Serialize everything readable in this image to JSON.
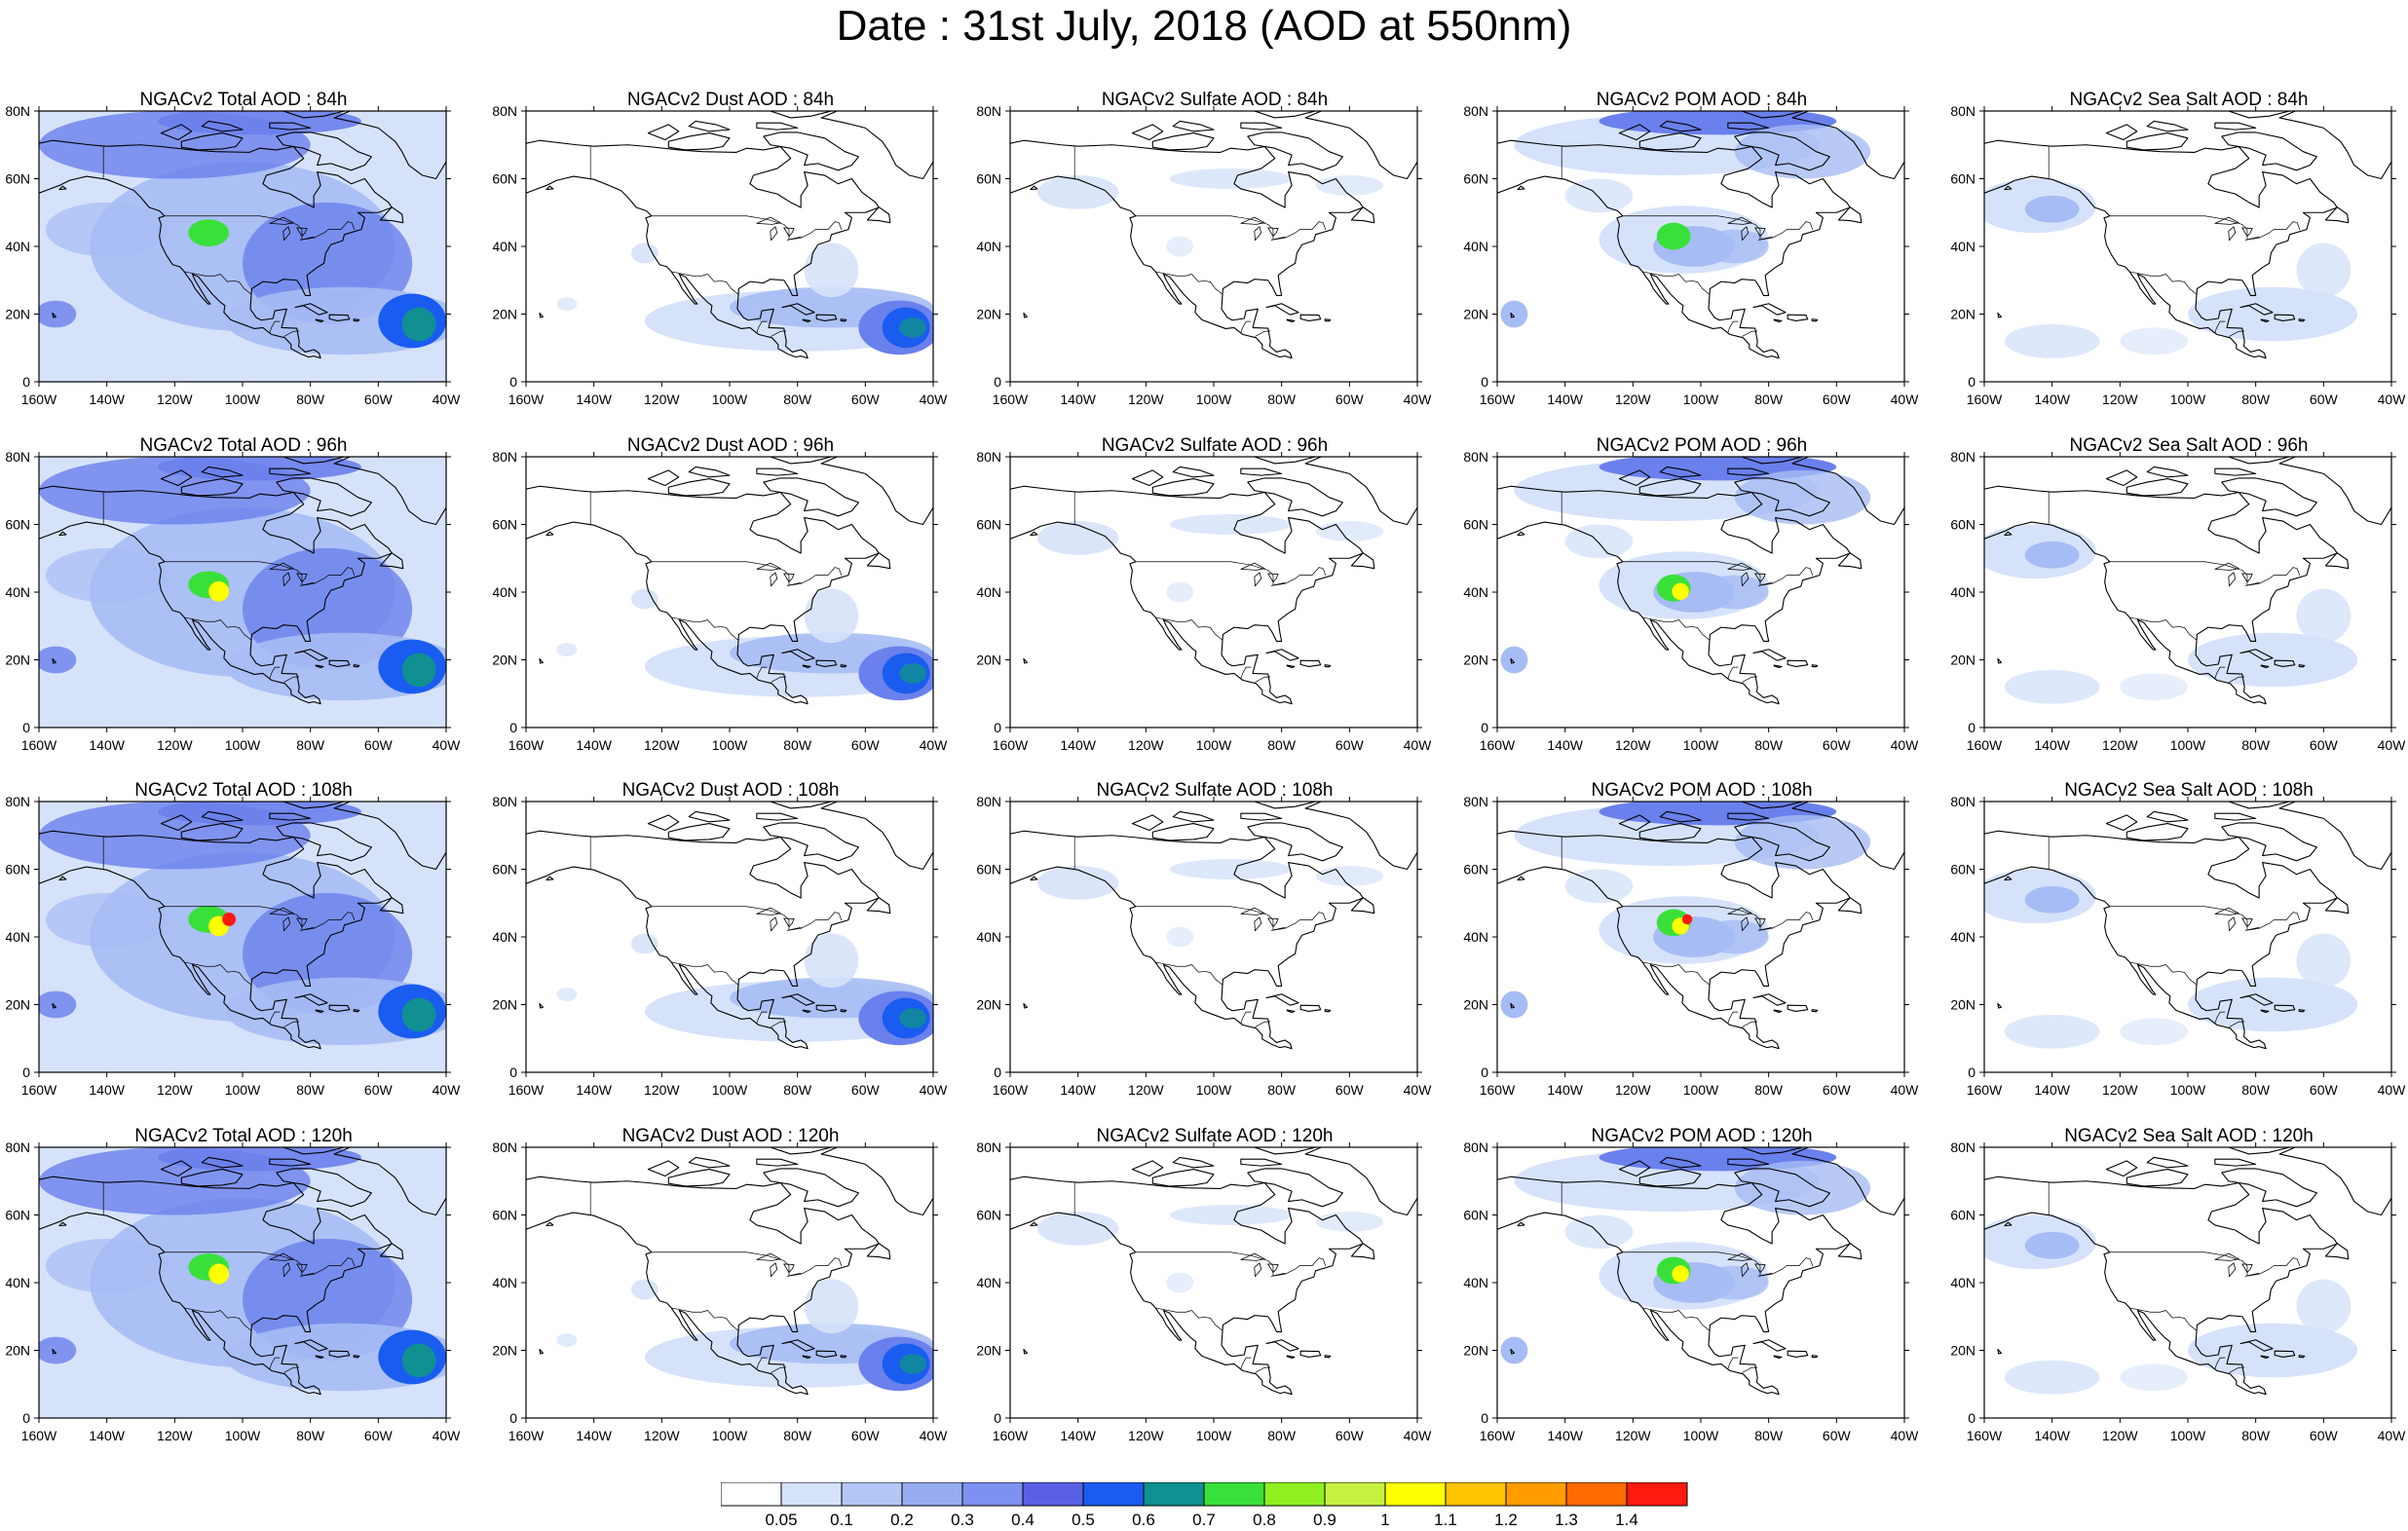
{
  "title": "Date : 31st July, 2018 (AOD at 550nm)",
  "axes": {
    "lon_labels": [
      "160W",
      "140W",
      "120W",
      "100W",
      "80W",
      "60W",
      "40W"
    ],
    "lat_labels": [
      "0",
      "20N",
      "40N",
      "60N",
      "80N"
    ]
  },
  "columns": [
    "total",
    "dust",
    "sulfate",
    "pom",
    "seasalt"
  ],
  "rows": [
    "84h",
    "96h",
    "108h",
    "120h"
  ],
  "panels": [
    [
      "NGACv2 Total AOD : 84h",
      "NGACv2 Dust AOD : 84h",
      "NGACv2 Sulfate AOD : 84h",
      "NGACv2 POM AOD : 84h",
      "NGACv2 Sea Salt AOD : 84h"
    ],
    [
      "NGACv2 Total AOD : 96h",
      "NGACv2 Dust AOD : 96h",
      "NGACv2 Sulfate AOD : 96h",
      "NGACv2 POM AOD : 96h",
      "NGACv2 Sea Salt AOD : 96h"
    ],
    [
      "NGACv2 Total AOD : 108h",
      "NGACv2 Dust AOD : 108h",
      "NGACv2 Sulfate AOD : 108h",
      "NGACv2 POM AOD : 108h",
      "NGACv2 Sea Salt AOD : 108h"
    ],
    [
      "NGACv2 Total AOD : 120h",
      "NGACv2 Dust AOD : 120h",
      "NGACv2 Sulfate AOD : 120h",
      "NGACv2 POM AOD : 120h",
      "NGACv2 Sea Salt  AOD : 120h"
    ]
  ],
  "colorbar": {
    "labels": [
      "0.05",
      "0.1",
      "0.2",
      "0.3",
      "0.4",
      "0.5",
      "0.6",
      "0.7",
      "0.8",
      "0.9",
      "1",
      "1.1",
      "1.2",
      "1.3",
      "1.4"
    ],
    "colors": [
      "#ffffff",
      "#d6e2fa",
      "#b4c6f6",
      "#96abf2",
      "#7f91f0",
      "#5a60e6",
      "#1a5cf0",
      "#109090",
      "#3ae03a",
      "#8ef020",
      "#c8f040",
      "#ffff00",
      "#ffc400",
      "#ff9c00",
      "#ff6a00",
      "#ff1a10"
    ]
  },
  "map_colors": {
    "land_outline": "#000000",
    "low": "#d6e2fa",
    "mid": "#a6bcf4",
    "high": "#6a80ec",
    "plume_core": "#1a5cf0",
    "plume_teal": "#109090",
    "fire_green": "#3ae03a",
    "fire_yellow": "#ffff00",
    "fire_red": "#ff1a10"
  }
}
